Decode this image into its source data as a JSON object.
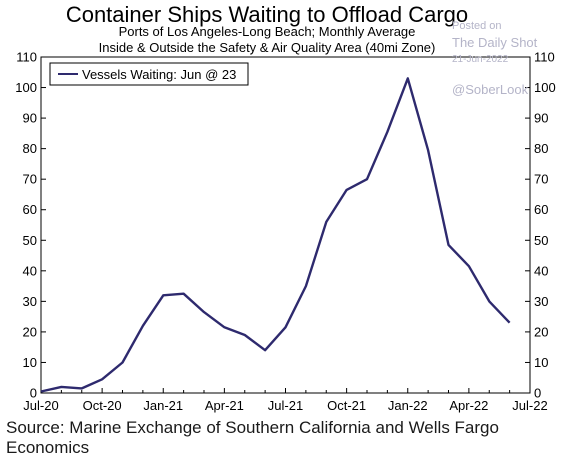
{
  "chart_data": {
    "type": "line",
    "title": "Container Ships Waiting to Offload Cargo",
    "subtitle": [
      "Ports of Los Angeles-Long Beach; Monthly Average",
      "Inside & Outside the Safety & Air Quality Area (40mi Zone)"
    ],
    "xlabel": "",
    "ylabel": "",
    "ylim": [
      0,
      110
    ],
    "yticks": [
      0,
      10,
      20,
      30,
      40,
      50,
      60,
      70,
      80,
      90,
      100,
      110
    ],
    "xticklabels": [
      "Jul-20",
      "Oct-20",
      "Jan-21",
      "Apr-21",
      "Jul-21",
      "Oct-21",
      "Jan-22",
      "Apr-22",
      "Jul-22"
    ],
    "grid": false,
    "legend_position": "top-left",
    "series": [
      {
        "name": "Vessels Waiting: Jun @ 23",
        "color": "#2e2a6e",
        "x": [
          "2020-07",
          "2020-08",
          "2020-09",
          "2020-10",
          "2020-11",
          "2020-12",
          "2021-01",
          "2021-02",
          "2021-03",
          "2021-04",
          "2021-05",
          "2021-06",
          "2021-07",
          "2021-08",
          "2021-09",
          "2021-10",
          "2021-11",
          "2021-12",
          "2022-01",
          "2022-02",
          "2022-03",
          "2022-04",
          "2022-05",
          "2022-06"
        ],
        "values": [
          0.5,
          2,
          1.5,
          4.5,
          10,
          22,
          32,
          32.5,
          26.5,
          21.5,
          19,
          14,
          21.5,
          35,
          56,
          66.5,
          70,
          85.5,
          103,
          79.5,
          48.5,
          41.5,
          30,
          23
        ]
      }
    ]
  },
  "watermark": [
    "Posted on",
    "The Daily Shot",
    "21-Jun-2022",
    "@SoberLook"
  ],
  "source": "Source: Marine Exchange of Southern California and Wells Fargo Economics"
}
